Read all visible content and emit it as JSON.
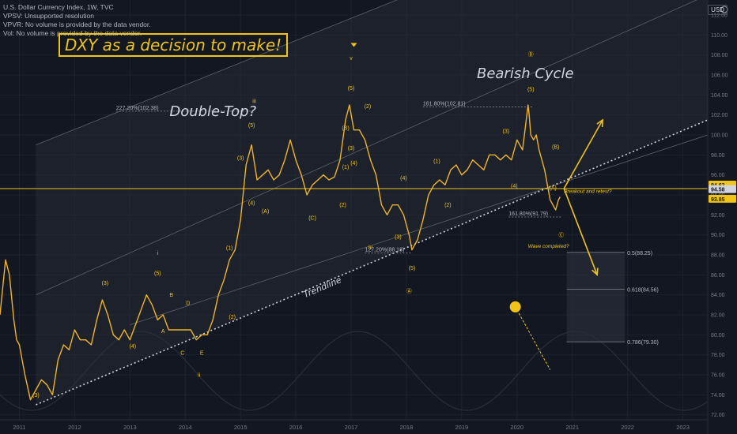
{
  "legend": {
    "title": "U.S. Dollar Currency Index, 1W, TVC",
    "lines": [
      "VPSV: Unsupported resolution",
      "VPVR: No volume is provided by the data vendor.",
      "Vol: No volume is provided by the data vendor."
    ]
  },
  "currency_badge": "USD",
  "headline": "DXY as a decision to make!",
  "colors": {
    "background": "#131722",
    "candles": "#f0b429",
    "accent": "#f0c419",
    "grid": "#1e222d",
    "axis_text": "#787b86",
    "channel_fill": "#2a2e39",
    "trendline": "#d1d4dc"
  },
  "chart_data": {
    "type": "line",
    "instrument": "U.S. Dollar Currency Index",
    "interval": "1W",
    "x_range": [
      2010.65,
      2023.45
    ],
    "ylim": [
      71.5,
      113.5
    ],
    "x_ticks": [
      2011,
      2012,
      2013,
      2014,
      2015,
      2016,
      2017,
      2018,
      2019,
      2020,
      2021,
      2022,
      2023
    ],
    "x_tick_labels": [
      "2011",
      "2012",
      "2013",
      "2014",
      "2015",
      "2016",
      "2017",
      "2018",
      "2019",
      "2020",
      "2021",
      "2022",
      "2023"
    ],
    "y_ticks": [
      72,
      74,
      76,
      78,
      80,
      82,
      84,
      86,
      88,
      90,
      92,
      94,
      96,
      98,
      100,
      102,
      104,
      106,
      108,
      110,
      112
    ],
    "y_tick_labels": [
      "72.00",
      "74.00",
      "76.00",
      "78.00",
      "80.00",
      "82.00",
      "84.00",
      "86.00",
      "88.00",
      "90.00",
      "92.00",
      "94.00",
      "96.00",
      "98.00",
      "100.00",
      "102.00",
      "104.00",
      "106.00",
      "108.00",
      "110.00",
      "112.00"
    ],
    "grid": true,
    "price_labels": [
      {
        "text": "94.63",
        "y": 94.63,
        "highlight": true
      },
      {
        "text": "94.58",
        "y": 94.58,
        "highlight": false
      },
      {
        "text": "93.85",
        "y": 93.85,
        "highlight": true
      }
    ],
    "horizontal_line": 94.63,
    "series": [
      {
        "x": [
          2010.65,
          2010.75,
          2010.82,
          2010.9,
          2010.95,
          2011.0,
          2011.1,
          2011.2,
          2011.3,
          2011.4,
          2011.5,
          2011.6,
          2011.7,
          2011.8,
          2011.9,
          2012.0,
          2012.1,
          2012.2,
          2012.3,
          2012.4,
          2012.5,
          2012.6,
          2012.7,
          2012.8,
          2012.9,
          2013.0,
          2013.1,
          2013.2,
          2013.3,
          2013.4,
          2013.5,
          2013.6,
          2013.7,
          2013.8,
          2013.9,
          2014.0,
          2014.1,
          2014.2,
          2014.3,
          2014.4,
          2014.5,
          2014.6,
          2014.7,
          2014.8,
          2014.9,
          2015.0,
          2015.1,
          2015.2,
          2015.3,
          2015.4,
          2015.5,
          2015.6,
          2015.7,
          2015.8,
          2015.9,
          2016.0,
          2016.1,
          2016.2,
          2016.3,
          2016.4,
          2016.5,
          2016.6,
          2016.7,
          2016.8,
          2016.9,
          2016.97,
          2017.05,
          2017.15,
          2017.25,
          2017.35,
          2017.45,
          2017.55,
          2017.65,
          2017.75,
          2017.85,
          2017.95,
          2018.05,
          2018.1,
          2018.2,
          2018.3,
          2018.4,
          2018.5,
          2018.6,
          2018.7,
          2018.8,
          2018.9,
          2019.0,
          2019.1,
          2019.2,
          2019.3,
          2019.4,
          2019.5,
          2019.6,
          2019.7,
          2019.8,
          2019.9,
          2020.0,
          2020.1,
          2020.2,
          2020.22,
          2020.25,
          2020.3,
          2020.35,
          2020.4,
          2020.5,
          2020.6,
          2020.65,
          2020.7,
          2020.75,
          2020.78
        ],
        "values": [
          82.0,
          87.5,
          86.0,
          81.5,
          79.5,
          79.0,
          76.0,
          73.5,
          74.5,
          75.5,
          75.0,
          74.0,
          77.5,
          79.0,
          78.5,
          80.5,
          79.5,
          79.5,
          79.0,
          81.5,
          83.5,
          82.0,
          80.0,
          79.5,
          80.5,
          79.5,
          81.0,
          82.5,
          84.0,
          83.0,
          81.5,
          82.0,
          80.5,
          80.5,
          80.5,
          80.5,
          80.5,
          79.5,
          80.0,
          80.0,
          81.5,
          84.0,
          85.5,
          87.5,
          88.5,
          91.5,
          97.0,
          99.0,
          95.5,
          96.0,
          96.5,
          95.5,
          96.0,
          97.5,
          99.5,
          97.5,
          96.0,
          94.0,
          95.0,
          95.5,
          96.0,
          95.5,
          95.8,
          97.5,
          101.5,
          103.0,
          100.5,
          100.5,
          99.5,
          97.5,
          96.0,
          93.0,
          92.0,
          93.0,
          93.0,
          92.0,
          90.0,
          88.5,
          89.5,
          91.5,
          94.0,
          95.0,
          95.5,
          95.0,
          96.5,
          97.0,
          96.0,
          96.5,
          97.5,
          97.0,
          96.5,
          98.0,
          98.0,
          97.5,
          98.0,
          97.5,
          99.5,
          98.5,
          103.0,
          102.0,
          100.0,
          99.5,
          100.0,
          98.5,
          96.5,
          93.5,
          93.0,
          92.5,
          93.5,
          93.8
        ]
      }
    ],
    "trendline": {
      "x": [
        2011.3,
        2023.45
      ],
      "y": [
        73.0,
        101.5
      ]
    },
    "channel_top_line": {
      "x": [
        2011.3,
        2023.45
      ],
      "y": [
        99.0,
        126.0
      ]
    },
    "channel_mid_line": {
      "x": [
        2011.3,
        2023.45
      ],
      "y": [
        84.0,
        114.0
      ]
    },
    "inner_line": {
      "x": [
        2013.0,
        2023.45
      ],
      "y": [
        81.0,
        100.0
      ]
    },
    "projection_up": {
      "x": [
        2020.85,
        2021.55
      ],
      "y": [
        94.63,
        101.5
      ]
    },
    "projection_down": {
      "x": [
        2020.85,
        2021.45
      ],
      "y": [
        94.63,
        86.0
      ]
    },
    "fib_box": {
      "x": [
        2020.9,
        2021.95
      ],
      "y": [
        79.3,
        88.25
      ]
    },
    "fib_levels": [
      {
        "text": "0.5(88.25)",
        "y": 88.25
      },
      {
        "text": "0.618(84.56)",
        "y": 84.56
      },
      {
        "text": "0.786(79.30)",
        "y": 79.3
      }
    ],
    "fib_extension_labels": [
      {
        "text": "227.20%(102.38)",
        "x": 2012.75,
        "y": 102.38,
        "x_end": 2015.2
      },
      {
        "text": "161.80%(102.81)",
        "x": 2018.3,
        "y": 102.81,
        "x_end": 2020.3
      },
      {
        "text": "127.20%(88.18)",
        "x": 2017.25,
        "y": 88.18,
        "x_end": 2018.1
      },
      {
        "text": "161.80%(91.79)",
        "x": 2019.85,
        "y": 91.79,
        "x_end": 2020.8
      }
    ],
    "cycle_dot": {
      "x": 2019.97,
      "y": 82.8
    },
    "cycle_arrow": {
      "x": [
        2020.0,
        2020.6
      ],
      "y": [
        82.5,
        76.5
      ]
    },
    "annotations": [
      {
        "text": "Double-Top?",
        "x": 2014.5,
        "y": 101.9,
        "style": "large"
      },
      {
        "text": "Bearish Cycle",
        "x": 2020.15,
        "y": 105.7,
        "style": "large"
      },
      {
        "text": "Trendline",
        "x": 2016.5,
        "y": 84.5,
        "style": "trend"
      },
      {
        "text": "Breakout and retest?",
        "x": 2020.85,
        "y": 94.2,
        "style": "note"
      },
      {
        "text": "Wave completed?",
        "x": 2020.2,
        "y": 88.7,
        "style": "note"
      }
    ],
    "wave_labels": [
      {
        "text": "v",
        "x": 2017.0,
        "y": 107.5
      },
      {
        "text": "iii",
        "x": 2015.25,
        "y": 103.2
      },
      {
        "text": "i",
        "x": 2013.5,
        "y": 88.0
      },
      {
        "text": "iv",
        "x": 2017.35,
        "y": 88.6
      },
      {
        "text": "ii",
        "x": 2014.25,
        "y": 75.8
      },
      {
        "text": "(5)",
        "x": 2017.0,
        "y": 104.5
      },
      {
        "text": "(5)",
        "x": 2015.2,
        "y": 100.8
      },
      {
        "text": "(3)",
        "x": 2015.0,
        "y": 97.5
      },
      {
        "text": "(4)",
        "x": 2015.2,
        "y": 93.0
      },
      {
        "text": "(A)",
        "x": 2015.45,
        "y": 92.2
      },
      {
        "text": "(B)",
        "x": 2016.9,
        "y": 100.5
      },
      {
        "text": "(C)",
        "x": 2016.3,
        "y": 91.5
      },
      {
        "text": "(1)",
        "x": 2016.9,
        "y": 96.6
      },
      {
        "text": "(2)",
        "x": 2016.85,
        "y": 92.8
      },
      {
        "text": "(3)",
        "x": 2017.0,
        "y": 98.5
      },
      {
        "text": "(4)",
        "x": 2017.05,
        "y": 97.0
      },
      {
        "text": "(2)",
        "x": 2017.3,
        "y": 102.7
      },
      {
        "text": "(4)",
        "x": 2017.95,
        "y": 95.5
      },
      {
        "text": "(3)",
        "x": 2017.85,
        "y": 89.6
      },
      {
        "text": "(5)",
        "x": 2018.1,
        "y": 86.5
      },
      {
        "text": "(1)",
        "x": 2018.55,
        "y": 97.2
      },
      {
        "text": "(2)",
        "x": 2018.75,
        "y": 92.8
      },
      {
        "text": "(3)",
        "x": 2019.8,
        "y": 100.2
      },
      {
        "text": "(4)",
        "x": 2019.95,
        "y": 94.7
      },
      {
        "text": "(5)",
        "x": 2020.25,
        "y": 104.4
      },
      {
        "text": "(B)",
        "x": 2020.7,
        "y": 98.6
      },
      {
        "text": "(A)",
        "x": 2020.65,
        "y": 94.5
      },
      {
        "text": "(3)",
        "x": 2012.55,
        "y": 85.0
      },
      {
        "text": "(5)",
        "x": 2013.5,
        "y": 86.0
      },
      {
        "text": "(4)",
        "x": 2013.05,
        "y": 78.7
      },
      {
        "text": "(1)",
        "x": 2014.8,
        "y": 88.5
      },
      {
        "text": "(2)",
        "x": 2014.85,
        "y": 81.6
      },
      {
        "text": "A",
        "x": 2013.6,
        "y": 80.2
      },
      {
        "text": "B",
        "x": 2013.75,
        "y": 83.8
      },
      {
        "text": "C",
        "x": 2013.95,
        "y": 78.0
      },
      {
        "text": "D",
        "x": 2014.05,
        "y": 83.0
      },
      {
        "text": "E",
        "x": 2014.3,
        "y": 78.0
      },
      {
        "text": "(3)",
        "x": 2011.3,
        "y": 73.8
      },
      {
        "text": "Ⓐ",
        "x": 2018.05,
        "y": 84.2
      },
      {
        "text": "Ⓑ",
        "x": 2020.25,
        "y": 107.9
      },
      {
        "text": "Ⓒ",
        "x": 2020.8,
        "y": 89.8
      }
    ]
  }
}
